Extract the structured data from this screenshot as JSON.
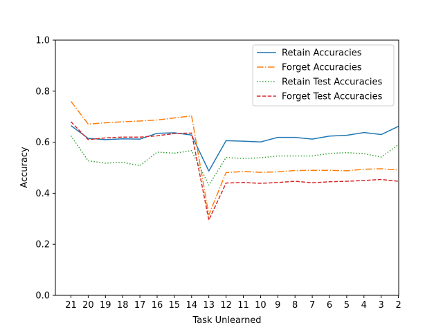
{
  "chart_data": {
    "type": "line",
    "xlabel": "Task Unlearned",
    "ylabel": "Accuracy",
    "categories": [
      "21",
      "20",
      "19",
      "18",
      "17",
      "16",
      "15",
      "14",
      "13",
      "12",
      "11",
      "10",
      "9",
      "8",
      "7",
      "6",
      "5",
      "4",
      "3",
      "2"
    ],
    "ylim": [
      0.0,
      1.0
    ],
    "yticks": [
      "0.0",
      "0.2",
      "0.4",
      "0.6",
      "0.8",
      "1.0"
    ],
    "grid": false,
    "legend_position": "top-right",
    "series": [
      {
        "name": "Retain Accuracies",
        "color": "#1f77b4",
        "style": "solid",
        "values": [
          0.665,
          0.615,
          0.61,
          0.613,
          0.612,
          0.635,
          0.637,
          0.628,
          0.487,
          0.606,
          0.604,
          0.601,
          0.619,
          0.619,
          0.612,
          0.624,
          0.627,
          0.638,
          0.63,
          0.662
        ]
      },
      {
        "name": "Forget Accuracies",
        "color": "#ff7f0e",
        "style": "dashdot",
        "values": [
          0.76,
          0.671,
          0.676,
          0.68,
          0.683,
          0.687,
          0.695,
          0.703,
          0.315,
          0.481,
          0.485,
          0.482,
          0.484,
          0.489,
          0.49,
          0.49,
          0.488,
          0.494,
          0.496,
          0.491
        ]
      },
      {
        "name": "Retain Test Accuracies",
        "color": "#2ca02c",
        "style": "dotted",
        "values": [
          0.625,
          0.527,
          0.518,
          0.521,
          0.508,
          0.561,
          0.557,
          0.567,
          0.432,
          0.54,
          0.536,
          0.539,
          0.546,
          0.546,
          0.546,
          0.556,
          0.559,
          0.555,
          0.542,
          0.59
        ]
      },
      {
        "name": "Forget Test Accuracies",
        "color": "#d62728",
        "style": "dashed",
        "values": [
          0.68,
          0.61,
          0.617,
          0.62,
          0.62,
          0.625,
          0.634,
          0.636,
          0.295,
          0.44,
          0.442,
          0.439,
          0.442,
          0.447,
          0.441,
          0.445,
          0.447,
          0.45,
          0.454,
          0.447
        ]
      }
    ]
  }
}
